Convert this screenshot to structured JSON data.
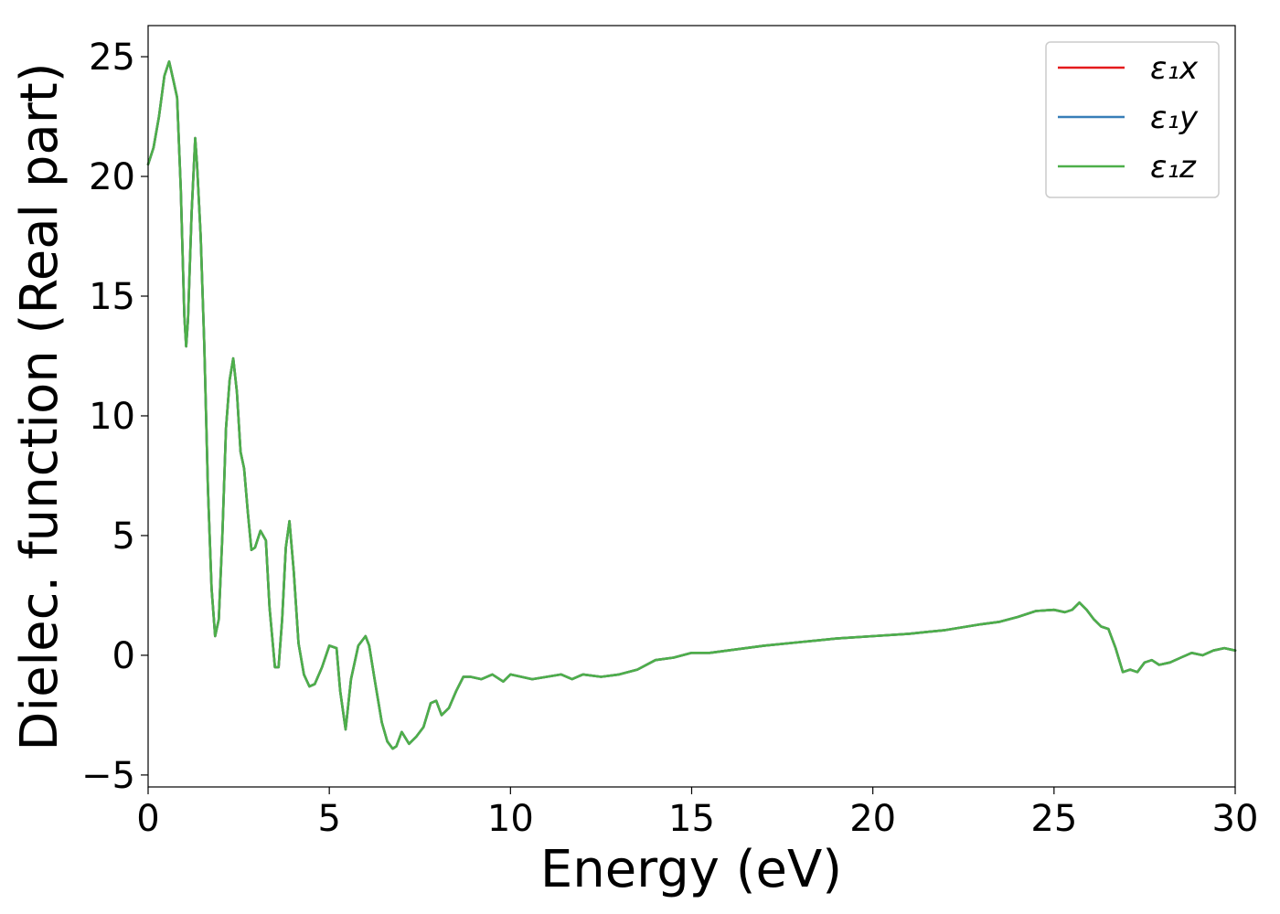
{
  "chart_data": {
    "type": "line",
    "title": "",
    "xlabel": "Energy (eV)",
    "ylabel": "Dielec. function (Real part)",
    "xlim": [
      0,
      30
    ],
    "ylim": [
      -5.5,
      26.3
    ],
    "xticks": [
      0,
      5,
      10,
      15,
      20,
      25,
      30
    ],
    "xtick_labels": [
      "0",
      "5",
      "10",
      "15",
      "20",
      "25",
      "30"
    ],
    "yticks": [
      -5,
      0,
      5,
      10,
      15,
      20,
      25
    ],
    "ytick_labels": [
      "−5",
      "0",
      "5",
      "10",
      "15",
      "20",
      "25"
    ],
    "grid": false,
    "legend_placement": "top-right",
    "series": [
      {
        "name": "ε₁x",
        "color": "#e41a1c",
        "x": [
          0.0,
          0.15,
          0.3,
          0.45,
          0.58,
          0.7,
          0.8,
          0.9,
          1.0,
          1.05,
          1.1,
          1.2,
          1.3,
          1.35,
          1.45,
          1.55,
          1.65,
          1.75,
          1.85,
          1.95,
          2.05,
          2.15,
          2.25,
          2.35,
          2.45,
          2.55,
          2.65,
          2.75,
          2.85,
          2.95,
          3.1,
          3.25,
          3.35,
          3.5,
          3.6,
          3.7,
          3.8,
          3.9,
          4.02,
          4.15,
          4.3,
          4.45,
          4.6,
          4.8,
          5.0,
          5.2,
          5.3,
          5.45,
          5.6,
          5.8,
          6.0,
          6.1,
          6.25,
          6.45,
          6.6,
          6.75,
          6.85,
          7.0,
          7.2,
          7.4,
          7.6,
          7.8,
          7.95,
          8.1,
          8.3,
          8.5,
          8.7,
          8.9,
          9.2,
          9.5,
          9.8,
          10.0,
          10.3,
          10.6,
          11.0,
          11.4,
          11.7,
          12.0,
          12.5,
          13.0,
          13.5,
          14.0,
          14.5,
          15.0,
          15.5,
          16.0,
          16.5,
          17.0,
          18.0,
          19.0,
          20.0,
          21.0,
          22.0,
          23.0,
          23.5,
          24.0,
          24.5,
          25.0,
          25.3,
          25.5,
          25.7,
          25.9,
          26.1,
          26.3,
          26.5,
          26.7,
          26.9,
          27.1,
          27.3,
          27.5,
          27.7,
          27.9,
          28.2,
          28.5,
          28.8,
          29.1,
          29.4,
          29.7,
          30.0
        ],
        "y": [
          20.5,
          21.2,
          22.5,
          24.2,
          24.8,
          24.0,
          23.3,
          19.5,
          14.2,
          12.9,
          14.0,
          18.5,
          21.6,
          20.5,
          17.5,
          13.0,
          7.0,
          2.8,
          0.8,
          1.5,
          5.0,
          9.5,
          11.5,
          12.4,
          11.0,
          8.5,
          7.8,
          6.0,
          4.4,
          4.5,
          5.2,
          4.8,
          2.0,
          -0.5,
          -0.5,
          1.5,
          4.5,
          5.6,
          3.5,
          0.5,
          -0.8,
          -1.3,
          -1.2,
          -0.5,
          0.4,
          0.3,
          -1.5,
          -3.1,
          -1.0,
          0.4,
          0.8,
          0.4,
          -1.0,
          -2.8,
          -3.6,
          -3.9,
          -3.8,
          -3.2,
          -3.7,
          -3.4,
          -3.0,
          -2.0,
          -1.9,
          -2.5,
          -2.2,
          -1.5,
          -0.9,
          -0.9,
          -1.0,
          -0.8,
          -1.1,
          -0.8,
          -0.9,
          -1.0,
          -0.9,
          -0.8,
          -1.0,
          -0.8,
          -0.9,
          -0.8,
          -0.6,
          -0.2,
          -0.1,
          0.1,
          0.1,
          0.2,
          0.3,
          0.4,
          0.55,
          0.7,
          0.8,
          0.9,
          1.05,
          1.3,
          1.4,
          1.6,
          1.85,
          1.9,
          1.8,
          1.9,
          2.2,
          1.9,
          1.5,
          1.2,
          1.1,
          0.3,
          -0.7,
          -0.6,
          -0.7,
          -0.3,
          -0.2,
          -0.4,
          -0.3,
          -0.1,
          0.1,
          0.0,
          0.2,
          0.3,
          0.2
        ]
      },
      {
        "name": "ε₁y",
        "color": "#377eb8",
        "x": [
          0.0,
          0.15,
          0.3,
          0.45,
          0.58,
          0.7,
          0.8,
          0.9,
          1.0,
          1.05,
          1.1,
          1.2,
          1.3,
          1.35,
          1.45,
          1.55,
          1.65,
          1.75,
          1.85,
          1.95,
          2.05,
          2.15,
          2.25,
          2.35,
          2.45,
          2.55,
          2.65,
          2.75,
          2.85,
          2.95,
          3.1,
          3.25,
          3.35,
          3.5,
          3.6,
          3.7,
          3.8,
          3.9,
          4.02,
          4.15,
          4.3,
          4.45,
          4.6,
          4.8,
          5.0,
          5.2,
          5.3,
          5.45,
          5.6,
          5.8,
          6.0,
          6.1,
          6.25,
          6.45,
          6.6,
          6.75,
          6.85,
          7.0,
          7.2,
          7.4,
          7.6,
          7.8,
          7.95,
          8.1,
          8.3,
          8.5,
          8.7,
          8.9,
          9.2,
          9.5,
          9.8,
          10.0,
          10.3,
          10.6,
          11.0,
          11.4,
          11.7,
          12.0,
          12.5,
          13.0,
          13.5,
          14.0,
          14.5,
          15.0,
          15.5,
          16.0,
          16.5,
          17.0,
          18.0,
          19.0,
          20.0,
          21.0,
          22.0,
          23.0,
          23.5,
          24.0,
          24.5,
          25.0,
          25.3,
          25.5,
          25.7,
          25.9,
          26.1,
          26.3,
          26.5,
          26.7,
          26.9,
          27.1,
          27.3,
          27.5,
          27.7,
          27.9,
          28.2,
          28.5,
          28.8,
          29.1,
          29.4,
          29.7,
          30.0
        ],
        "y": [
          20.5,
          21.2,
          22.5,
          24.2,
          24.8,
          24.0,
          23.3,
          19.5,
          14.2,
          12.9,
          14.0,
          18.5,
          21.6,
          20.5,
          17.5,
          13.0,
          7.0,
          2.8,
          0.8,
          1.5,
          5.0,
          9.5,
          11.5,
          12.4,
          11.0,
          8.5,
          7.8,
          6.0,
          4.4,
          4.5,
          5.2,
          4.8,
          2.0,
          -0.5,
          -0.5,
          1.5,
          4.5,
          5.6,
          3.5,
          0.5,
          -0.8,
          -1.3,
          -1.2,
          -0.5,
          0.4,
          0.3,
          -1.5,
          -3.1,
          -1.0,
          0.4,
          0.8,
          0.4,
          -1.0,
          -2.8,
          -3.6,
          -3.9,
          -3.8,
          -3.2,
          -3.7,
          -3.4,
          -3.0,
          -2.0,
          -1.9,
          -2.5,
          -2.2,
          -1.5,
          -0.9,
          -0.9,
          -1.0,
          -0.8,
          -1.1,
          -0.8,
          -0.9,
          -1.0,
          -0.9,
          -0.8,
          -1.0,
          -0.8,
          -0.9,
          -0.8,
          -0.6,
          -0.2,
          -0.1,
          0.1,
          0.1,
          0.2,
          0.3,
          0.4,
          0.55,
          0.7,
          0.8,
          0.9,
          1.05,
          1.3,
          1.4,
          1.6,
          1.85,
          1.9,
          1.8,
          1.9,
          2.2,
          1.9,
          1.5,
          1.2,
          1.1,
          0.3,
          -0.7,
          -0.6,
          -0.7,
          -0.3,
          -0.2,
          -0.4,
          -0.3,
          -0.1,
          0.1,
          0.0,
          0.2,
          0.3,
          0.2
        ]
      },
      {
        "name": "ε₁z",
        "color": "#4daf4a",
        "x": [
          0.0,
          0.15,
          0.3,
          0.45,
          0.58,
          0.7,
          0.8,
          0.9,
          1.0,
          1.05,
          1.1,
          1.2,
          1.3,
          1.35,
          1.45,
          1.55,
          1.65,
          1.75,
          1.85,
          1.95,
          2.05,
          2.15,
          2.25,
          2.35,
          2.45,
          2.55,
          2.65,
          2.75,
          2.85,
          2.95,
          3.1,
          3.25,
          3.35,
          3.5,
          3.6,
          3.7,
          3.8,
          3.9,
          4.02,
          4.15,
          4.3,
          4.45,
          4.6,
          4.8,
          5.0,
          5.2,
          5.3,
          5.45,
          5.6,
          5.8,
          6.0,
          6.1,
          6.25,
          6.45,
          6.6,
          6.75,
          6.85,
          7.0,
          7.2,
          7.4,
          7.6,
          7.8,
          7.95,
          8.1,
          8.3,
          8.5,
          8.7,
          8.9,
          9.2,
          9.5,
          9.8,
          10.0,
          10.3,
          10.6,
          11.0,
          11.4,
          11.7,
          12.0,
          12.5,
          13.0,
          13.5,
          14.0,
          14.5,
          15.0,
          15.5,
          16.0,
          16.5,
          17.0,
          18.0,
          19.0,
          20.0,
          21.0,
          22.0,
          23.0,
          23.5,
          24.0,
          24.5,
          25.0,
          25.3,
          25.5,
          25.7,
          25.9,
          26.1,
          26.3,
          26.5,
          26.7,
          26.9,
          27.1,
          27.3,
          27.5,
          27.7,
          27.9,
          28.2,
          28.5,
          28.8,
          29.1,
          29.4,
          29.7,
          30.0
        ],
        "y": [
          20.5,
          21.2,
          22.5,
          24.2,
          24.8,
          24.0,
          23.3,
          19.5,
          14.2,
          12.9,
          14.0,
          18.5,
          21.6,
          20.5,
          17.5,
          13.0,
          7.0,
          2.8,
          0.8,
          1.5,
          5.0,
          9.5,
          11.5,
          12.4,
          11.0,
          8.5,
          7.8,
          6.0,
          4.4,
          4.5,
          5.2,
          4.8,
          2.0,
          -0.5,
          -0.5,
          1.5,
          4.5,
          5.6,
          3.5,
          0.5,
          -0.8,
          -1.3,
          -1.2,
          -0.5,
          0.4,
          0.3,
          -1.5,
          -3.1,
          -1.0,
          0.4,
          0.8,
          0.4,
          -1.0,
          -2.8,
          -3.6,
          -3.9,
          -3.8,
          -3.2,
          -3.7,
          -3.4,
          -3.0,
          -2.0,
          -1.9,
          -2.5,
          -2.2,
          -1.5,
          -0.9,
          -0.9,
          -1.0,
          -0.8,
          -1.1,
          -0.8,
          -0.9,
          -1.0,
          -0.9,
          -0.8,
          -1.0,
          -0.8,
          -0.9,
          -0.8,
          -0.6,
          -0.2,
          -0.1,
          0.1,
          0.1,
          0.2,
          0.3,
          0.4,
          0.55,
          0.7,
          0.8,
          0.9,
          1.05,
          1.3,
          1.4,
          1.6,
          1.85,
          1.9,
          1.8,
          1.9,
          2.2,
          1.9,
          1.5,
          1.2,
          1.1,
          0.3,
          -0.7,
          -0.6,
          -0.7,
          -0.3,
          -0.2,
          -0.4,
          -0.3,
          -0.1,
          0.1,
          0.0,
          0.2,
          0.3,
          0.2
        ]
      }
    ]
  }
}
